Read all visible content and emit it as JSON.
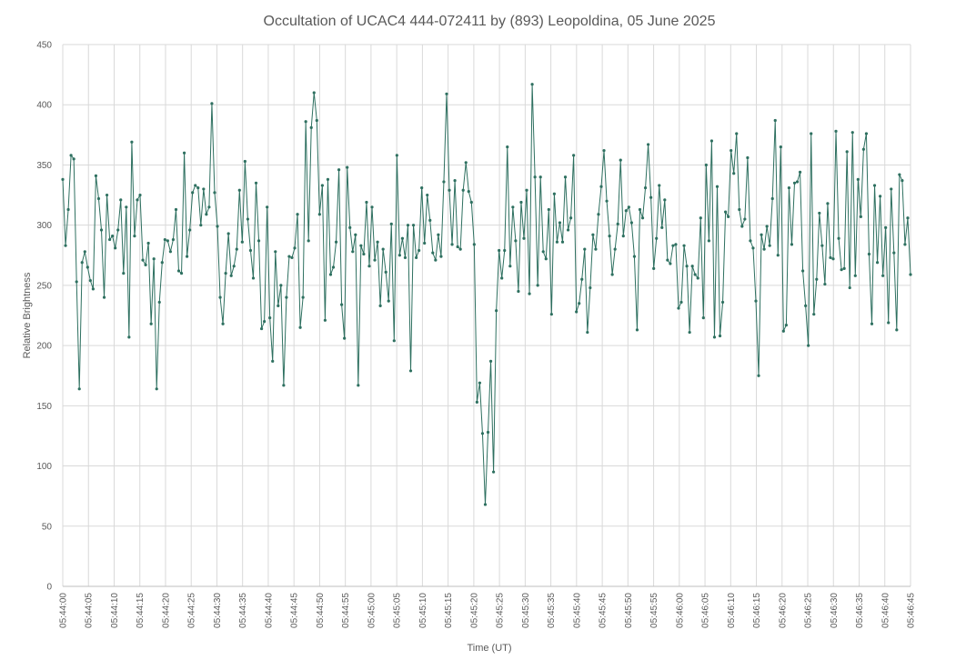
{
  "chart_data": {
    "type": "line",
    "title": "Occultation of UCAC4 444-072411 by (893) Leopoldina, 05 June 2025",
    "xlabel": "Time (UT)",
    "ylabel": "Relative Brightness",
    "ylim": [
      0,
      450
    ],
    "ytick_step": 50,
    "x_start": "05:44:00",
    "x_end": "05:46:45",
    "x_tick_labels": [
      "05:44:00",
      "05:44:05",
      "05:44:10",
      "05:44:15",
      "05:44:20",
      "05:44:25",
      "05:44:30",
      "05:44:35",
      "05:44:40",
      "05:44:45",
      "05:44:50",
      "05:44:55",
      "05:45:00",
      "05:45:05",
      "05:45:10",
      "05:45:15",
      "05:45:20",
      "05:45:25",
      "05:45:30",
      "05:45:35",
      "05:45:40",
      "05:45:45",
      "05:45:50",
      "05:45:55",
      "05:46:00",
      "05:46:05",
      "05:46:10",
      "05:46:15",
      "05:46:20",
      "05:46:25",
      "05:46:30",
      "05:46:35",
      "05:46:40",
      "05:46:45"
    ],
    "sample_interval_s": 0.5,
    "grid": true,
    "legend": "none",
    "series": [
      {
        "color": "#2e7060",
        "marker": "circle",
        "values": [
          338,
          283,
          313,
          358,
          355,
          253,
          164,
          269,
          278,
          265,
          254,
          247,
          341,
          322,
          296,
          240,
          325,
          288,
          291,
          281,
          296,
          321,
          260,
          315,
          207,
          369,
          291,
          321,
          325,
          271,
          267,
          285,
          218,
          272,
          164,
          236,
          269,
          288,
          287,
          278,
          288,
          313,
          262,
          260,
          360,
          274,
          296,
          327,
          333,
          331,
          300,
          330,
          309,
          315,
          401,
          327,
          299,
          240,
          218,
          260,
          293,
          258,
          266,
          280,
          329,
          286,
          353,
          305,
          279,
          256,
          335,
          287,
          214,
          220,
          315,
          223,
          187,
          278,
          233,
          250,
          167,
          240,
          274,
          273,
          281,
          309,
          215,
          240,
          386,
          287,
          381,
          410,
          387,
          309,
          333,
          221,
          338,
          259,
          265,
          286,
          346,
          234,
          206,
          348,
          298,
          278,
          292,
          167,
          283,
          276,
          319,
          266,
          315,
          271,
          286,
          233,
          280,
          261,
          237,
          301,
          204,
          358,
          275,
          289,
          273,
          300,
          179,
          300,
          273,
          279,
          331,
          285,
          325,
          304,
          277,
          271,
          292,
          274,
          336,
          409,
          329,
          284,
          337,
          282,
          280,
          329,
          352,
          328,
          319,
          284,
          153,
          169,
          127,
          68,
          128,
          187,
          95,
          229,
          279,
          256,
          279,
          365,
          266,
          315,
          287,
          245,
          319,
          289,
          329,
          243,
          417,
          340,
          250,
          340,
          278,
          272,
          313,
          226,
          326,
          286,
          302,
          286,
          340,
          296,
          306,
          358,
          228,
          235,
          255,
          280,
          211,
          248,
          292,
          280,
          309,
          332,
          362,
          320,
          291,
          259,
          280,
          301,
          354,
          291,
          312,
          315,
          302,
          274,
          213,
          313,
          306,
          331,
          367,
          323,
          264,
          289,
          333,
          298,
          321,
          271,
          268,
          283,
          284,
          231,
          236,
          283,
          266,
          211,
          266,
          259,
          256,
          306,
          223,
          350,
          287,
          370,
          207,
          332,
          208,
          236,
          311,
          307,
          362,
          343,
          376,
          313,
          299,
          305,
          356,
          287,
          281,
          237,
          175,
          292,
          280,
          299,
          283,
          322,
          387,
          275,
          365,
          212,
          217,
          331,
          284,
          335,
          336,
          344,
          262,
          233,
          200,
          376,
          226,
          255,
          310,
          283,
          251,
          318,
          273,
          272,
          378,
          289,
          263,
          264,
          361,
          248,
          377,
          258,
          338,
          307,
          363,
          376,
          276,
          218,
          333,
          269,
          324,
          258,
          298,
          219,
          330,
          277,
          213,
          342,
          337,
          284,
          306,
          259
        ]
      }
    ]
  }
}
